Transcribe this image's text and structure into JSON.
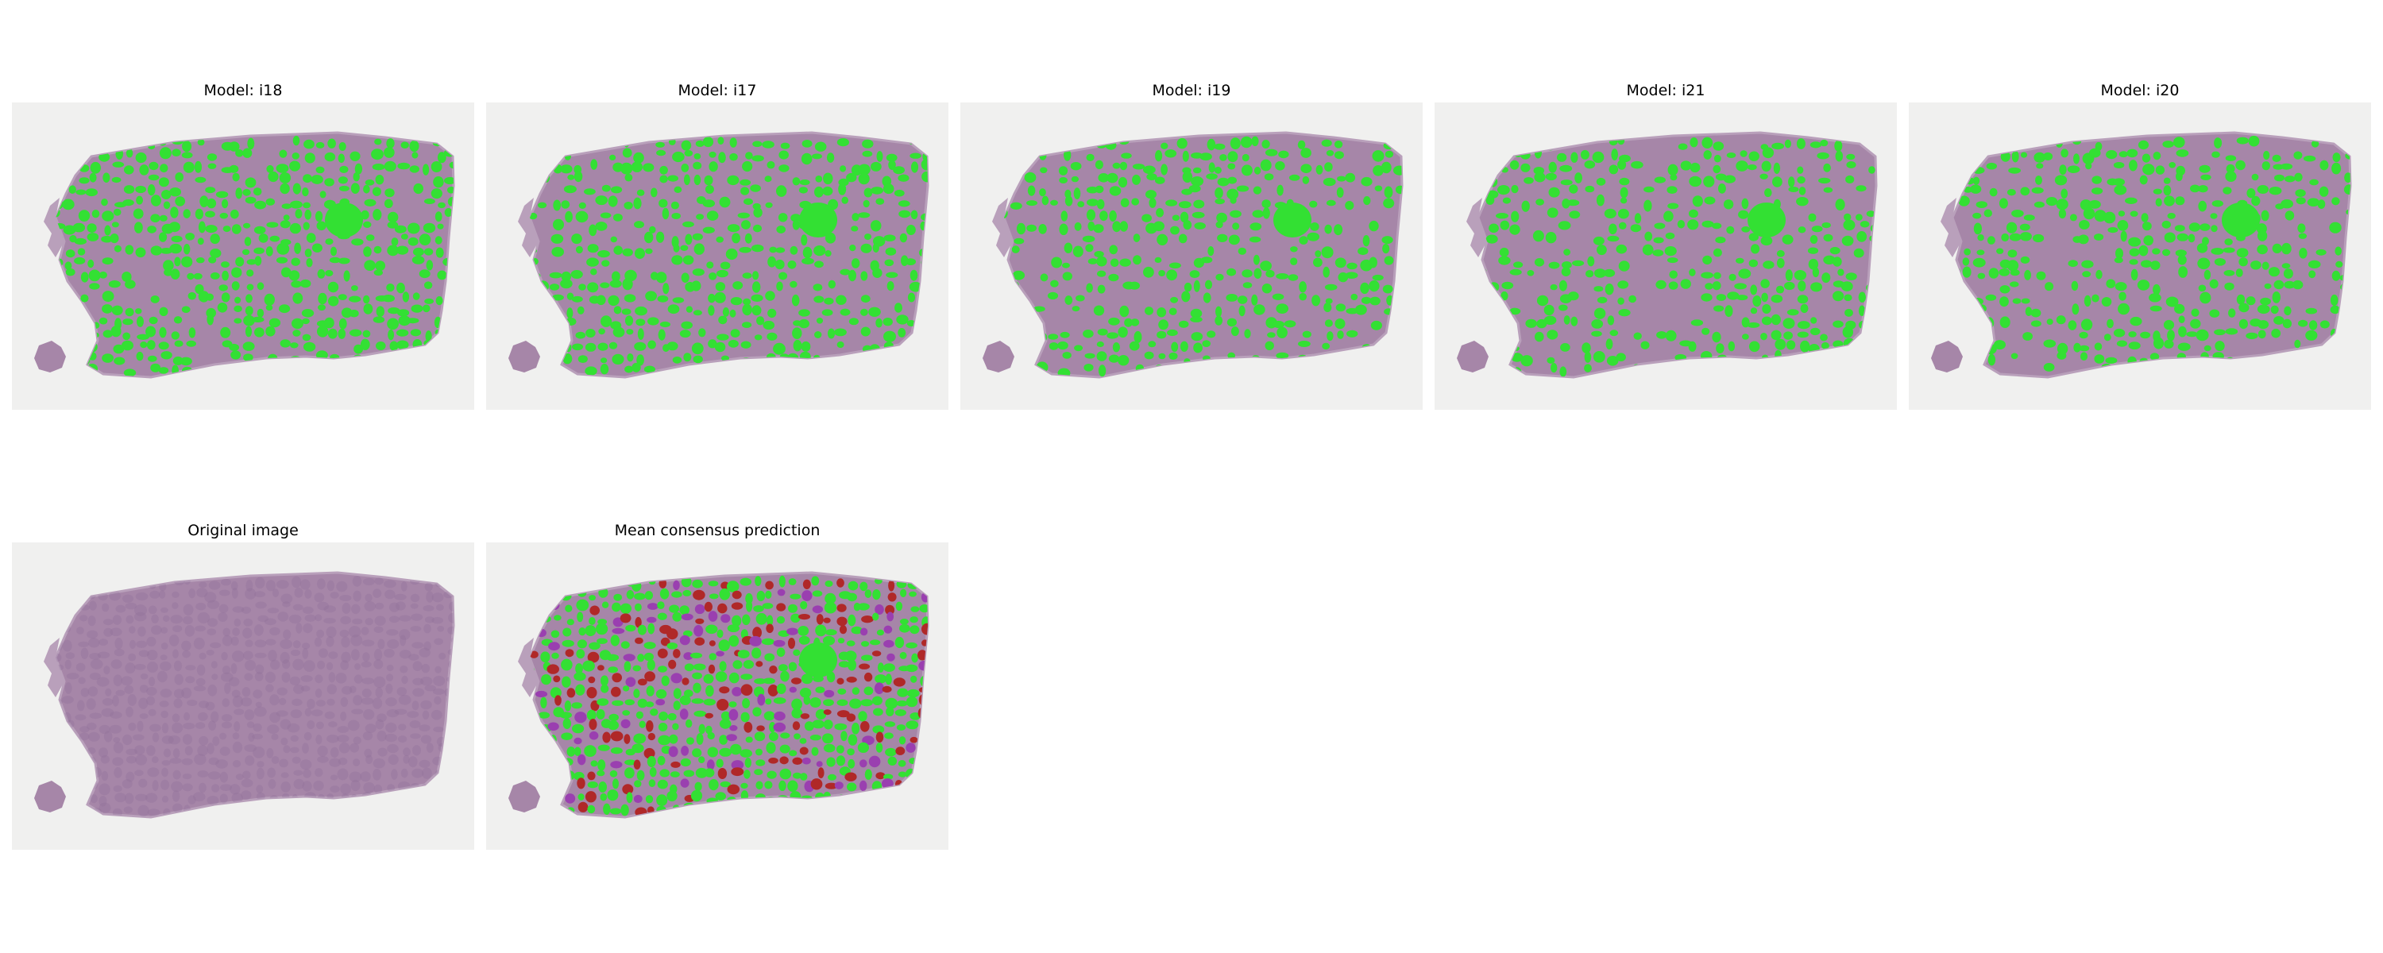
{
  "figure": {
    "panels": [
      {
        "title": "Model: i18",
        "kind": "model",
        "variant": 0
      },
      {
        "title": "Model: i17",
        "kind": "model",
        "variant": 1
      },
      {
        "title": "Model: i19",
        "kind": "model",
        "variant": 2
      },
      {
        "title": "Model: i21",
        "kind": "model",
        "variant": 3
      },
      {
        "title": "Model: i20",
        "kind": "model",
        "variant": 4
      },
      {
        "title": "Original image",
        "kind": "original",
        "variant": 5
      },
      {
        "title": "Mean consensus prediction",
        "kind": "consensus",
        "variant": 6
      }
    ]
  },
  "colors": {
    "background": "#f0f0ef",
    "tissue": "#a686a8",
    "tissue_edge": "#b9a0bb",
    "segmentation": "#33e033",
    "consensus_disagreement": "#b02828",
    "consensus_partial": "#9a3fb0"
  }
}
